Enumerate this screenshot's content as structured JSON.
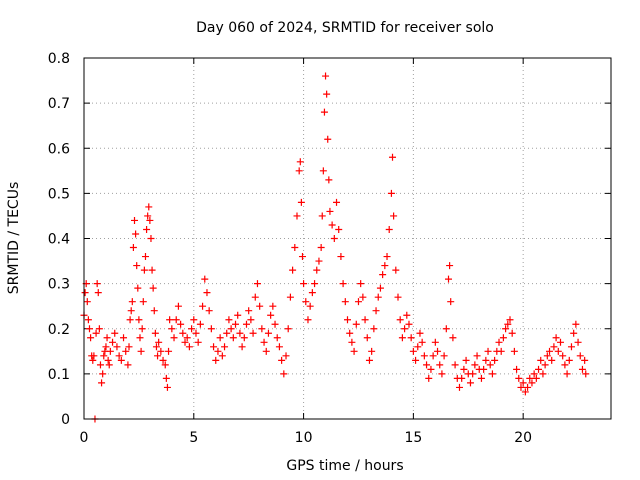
{
  "chart_data": {
    "type": "scatter",
    "title": "Day 060 of 2024, SRMTID for receiver solo",
    "xlabel": "GPS time / hours",
    "ylabel": "SRMTID / TECUs",
    "xlim": [
      0,
      24
    ],
    "ylim": [
      0,
      0.8
    ],
    "xticks": [
      "0",
      "5",
      "10",
      "15",
      "20"
    ],
    "yticks": [
      "0",
      "0.1",
      "0.2",
      "0.3",
      "0.4",
      "0.5",
      "0.6",
      "0.7",
      "0.8"
    ],
    "grid": true,
    "marker": "+",
    "color": "#ff0000",
    "series": [
      {
        "name": "SRMTID",
        "points": [
          [
            0.0,
            0.23
          ],
          [
            0.05,
            0.28
          ],
          [
            0.1,
            0.3
          ],
          [
            0.15,
            0.26
          ],
          [
            0.2,
            0.22
          ],
          [
            0.25,
            0.2
          ],
          [
            0.3,
            0.18
          ],
          [
            0.35,
            0.14
          ],
          [
            0.4,
            0.13
          ],
          [
            0.45,
            0.14
          ],
          [
            0.5,
            0.0
          ],
          [
            0.55,
            0.19
          ],
          [
            0.6,
            0.3
          ],
          [
            0.65,
            0.28
          ],
          [
            0.7,
            0.2
          ],
          [
            0.75,
            0.12
          ],
          [
            0.8,
            0.08
          ],
          [
            0.85,
            0.1
          ],
          [
            0.9,
            0.14
          ],
          [
            0.95,
            0.15
          ],
          [
            1.0,
            0.16
          ],
          [
            1.05,
            0.18
          ],
          [
            1.1,
            0.13
          ],
          [
            1.15,
            0.12
          ],
          [
            1.2,
            0.15
          ],
          [
            1.3,
            0.17
          ],
          [
            1.4,
            0.19
          ],
          [
            1.5,
            0.16
          ],
          [
            1.6,
            0.14
          ],
          [
            1.7,
            0.13
          ],
          [
            1.8,
            0.18
          ],
          [
            1.9,
            0.15
          ],
          [
            2.0,
            0.12
          ],
          [
            2.05,
            0.16
          ],
          [
            2.1,
            0.22
          ],
          [
            2.15,
            0.24
          ],
          [
            2.2,
            0.26
          ],
          [
            2.25,
            0.38
          ],
          [
            2.3,
            0.44
          ],
          [
            2.35,
            0.41
          ],
          [
            2.4,
            0.34
          ],
          [
            2.45,
            0.29
          ],
          [
            2.5,
            0.22
          ],
          [
            2.55,
            0.18
          ],
          [
            2.6,
            0.15
          ],
          [
            2.65,
            0.2
          ],
          [
            2.7,
            0.26
          ],
          [
            2.75,
            0.33
          ],
          [
            2.8,
            0.36
          ],
          [
            2.85,
            0.42
          ],
          [
            2.9,
            0.45
          ],
          [
            2.95,
            0.47
          ],
          [
            3.0,
            0.44
          ],
          [
            3.05,
            0.4
          ],
          [
            3.1,
            0.33
          ],
          [
            3.15,
            0.29
          ],
          [
            3.2,
            0.24
          ],
          [
            3.25,
            0.19
          ],
          [
            3.3,
            0.16
          ],
          [
            3.35,
            0.14
          ],
          [
            3.4,
            0.17
          ],
          [
            3.5,
            0.15
          ],
          [
            3.6,
            0.13
          ],
          [
            3.7,
            0.12
          ],
          [
            3.75,
            0.09
          ],
          [
            3.8,
            0.07
          ],
          [
            3.85,
            0.15
          ],
          [
            3.9,
            0.22
          ],
          [
            4.0,
            0.2
          ],
          [
            4.1,
            0.18
          ],
          [
            4.2,
            0.22
          ],
          [
            4.3,
            0.25
          ],
          [
            4.4,
            0.21
          ],
          [
            4.5,
            0.19
          ],
          [
            4.6,
            0.17
          ],
          [
            4.7,
            0.18
          ],
          [
            4.8,
            0.16
          ],
          [
            4.9,
            0.2
          ],
          [
            5.0,
            0.22
          ],
          [
            5.1,
            0.19
          ],
          [
            5.2,
            0.17
          ],
          [
            5.3,
            0.21
          ],
          [
            5.4,
            0.25
          ],
          [
            5.5,
            0.31
          ],
          [
            5.6,
            0.28
          ],
          [
            5.7,
            0.24
          ],
          [
            5.8,
            0.2
          ],
          [
            5.9,
            0.16
          ],
          [
            6.0,
            0.13
          ],
          [
            6.1,
            0.15
          ],
          [
            6.2,
            0.18
          ],
          [
            6.3,
            0.14
          ],
          [
            6.4,
            0.16
          ],
          [
            6.5,
            0.19
          ],
          [
            6.6,
            0.22
          ],
          [
            6.7,
            0.2
          ],
          [
            6.8,
            0.18
          ],
          [
            6.9,
            0.21
          ],
          [
            7.0,
            0.23
          ],
          [
            7.1,
            0.19
          ],
          [
            7.2,
            0.16
          ],
          [
            7.3,
            0.18
          ],
          [
            7.4,
            0.21
          ],
          [
            7.5,
            0.24
          ],
          [
            7.6,
            0.22
          ],
          [
            7.7,
            0.19
          ],
          [
            7.8,
            0.27
          ],
          [
            7.9,
            0.3
          ],
          [
            8.0,
            0.25
          ],
          [
            8.1,
            0.2
          ],
          [
            8.2,
            0.17
          ],
          [
            8.3,
            0.15
          ],
          [
            8.4,
            0.19
          ],
          [
            8.5,
            0.23
          ],
          [
            8.6,
            0.25
          ],
          [
            8.7,
            0.21
          ],
          [
            8.8,
            0.18
          ],
          [
            8.9,
            0.16
          ],
          [
            9.0,
            0.13
          ],
          [
            9.1,
            0.1
          ],
          [
            9.2,
            0.14
          ],
          [
            9.3,
            0.2
          ],
          [
            9.4,
            0.27
          ],
          [
            9.5,
            0.33
          ],
          [
            9.6,
            0.38
          ],
          [
            9.7,
            0.45
          ],
          [
            9.8,
            0.55
          ],
          [
            9.85,
            0.57
          ],
          [
            9.9,
            0.48
          ],
          [
            9.95,
            0.36
          ],
          [
            10.0,
            0.3
          ],
          [
            10.1,
            0.26
          ],
          [
            10.2,
            0.22
          ],
          [
            10.3,
            0.25
          ],
          [
            10.4,
            0.28
          ],
          [
            10.5,
            0.3
          ],
          [
            10.6,
            0.33
          ],
          [
            10.7,
            0.35
          ],
          [
            10.8,
            0.38
          ],
          [
            10.85,
            0.45
          ],
          [
            10.9,
            0.55
          ],
          [
            10.95,
            0.68
          ],
          [
            11.0,
            0.76
          ],
          [
            11.05,
            0.72
          ],
          [
            11.1,
            0.62
          ],
          [
            11.15,
            0.53
          ],
          [
            11.2,
            0.46
          ],
          [
            11.3,
            0.43
          ],
          [
            11.4,
            0.4
          ],
          [
            11.5,
            0.48
          ],
          [
            11.6,
            0.42
          ],
          [
            11.7,
            0.36
          ],
          [
            11.8,
            0.3
          ],
          [
            11.9,
            0.26
          ],
          [
            12.0,
            0.22
          ],
          [
            12.1,
            0.19
          ],
          [
            12.2,
            0.17
          ],
          [
            12.3,
            0.15
          ],
          [
            12.4,
            0.21
          ],
          [
            12.5,
            0.26
          ],
          [
            12.6,
            0.3
          ],
          [
            12.7,
            0.27
          ],
          [
            12.8,
            0.22
          ],
          [
            12.9,
            0.18
          ],
          [
            13.0,
            0.13
          ],
          [
            13.1,
            0.15
          ],
          [
            13.2,
            0.2
          ],
          [
            13.3,
            0.24
          ],
          [
            13.4,
            0.27
          ],
          [
            13.5,
            0.29
          ],
          [
            13.6,
            0.32
          ],
          [
            13.7,
            0.34
          ],
          [
            13.8,
            0.36
          ],
          [
            13.9,
            0.42
          ],
          [
            14.0,
            0.5
          ],
          [
            14.05,
            0.58
          ],
          [
            14.1,
            0.45
          ],
          [
            14.2,
            0.33
          ],
          [
            14.3,
            0.27
          ],
          [
            14.4,
            0.22
          ],
          [
            14.5,
            0.18
          ],
          [
            14.6,
            0.2
          ],
          [
            14.7,
            0.23
          ],
          [
            14.8,
            0.21
          ],
          [
            14.9,
            0.18
          ],
          [
            15.0,
            0.15
          ],
          [
            15.1,
            0.13
          ],
          [
            15.2,
            0.16
          ],
          [
            15.3,
            0.19
          ],
          [
            15.4,
            0.17
          ],
          [
            15.5,
            0.14
          ],
          [
            15.6,
            0.12
          ],
          [
            15.7,
            0.09
          ],
          [
            15.8,
            0.11
          ],
          [
            15.9,
            0.14
          ],
          [
            16.0,
            0.17
          ],
          [
            16.1,
            0.15
          ],
          [
            16.2,
            0.12
          ],
          [
            16.3,
            0.1
          ],
          [
            16.4,
            0.14
          ],
          [
            16.5,
            0.2
          ],
          [
            16.6,
            0.31
          ],
          [
            16.65,
            0.34
          ],
          [
            16.7,
            0.26
          ],
          [
            16.8,
            0.18
          ],
          [
            16.9,
            0.12
          ],
          [
            17.0,
            0.09
          ],
          [
            17.1,
            0.07
          ],
          [
            17.2,
            0.09
          ],
          [
            17.3,
            0.11
          ],
          [
            17.4,
            0.13
          ],
          [
            17.5,
            0.1
          ],
          [
            17.6,
            0.08
          ],
          [
            17.7,
            0.1
          ],
          [
            17.8,
            0.12
          ],
          [
            17.9,
            0.14
          ],
          [
            18.0,
            0.11
          ],
          [
            18.1,
            0.09
          ],
          [
            18.2,
            0.11
          ],
          [
            18.3,
            0.13
          ],
          [
            18.4,
            0.15
          ],
          [
            18.5,
            0.12
          ],
          [
            18.6,
            0.1
          ],
          [
            18.7,
            0.13
          ],
          [
            18.8,
            0.15
          ],
          [
            18.9,
            0.17
          ],
          [
            19.0,
            0.15
          ],
          [
            19.1,
            0.18
          ],
          [
            19.2,
            0.2
          ],
          [
            19.3,
            0.21
          ],
          [
            19.4,
            0.22
          ],
          [
            19.5,
            0.19
          ],
          [
            19.6,
            0.15
          ],
          [
            19.7,
            0.11
          ],
          [
            19.8,
            0.09
          ],
          [
            19.9,
            0.07
          ],
          [
            20.0,
            0.08
          ],
          [
            20.1,
            0.06
          ],
          [
            20.2,
            0.07
          ],
          [
            20.3,
            0.09
          ],
          [
            20.4,
            0.08
          ],
          [
            20.5,
            0.1
          ],
          [
            20.6,
            0.09
          ],
          [
            20.7,
            0.11
          ],
          [
            20.8,
            0.13
          ],
          [
            20.9,
            0.1
          ],
          [
            21.0,
            0.12
          ],
          [
            21.1,
            0.14
          ],
          [
            21.2,
            0.15
          ],
          [
            21.3,
            0.13
          ],
          [
            21.4,
            0.16
          ],
          [
            21.5,
            0.18
          ],
          [
            21.6,
            0.15
          ],
          [
            21.7,
            0.17
          ],
          [
            21.8,
            0.14
          ],
          [
            21.9,
            0.12
          ],
          [
            22.0,
            0.1
          ],
          [
            22.1,
            0.13
          ],
          [
            22.2,
            0.16
          ],
          [
            22.3,
            0.19
          ],
          [
            22.4,
            0.21
          ],
          [
            22.5,
            0.17
          ],
          [
            22.6,
            0.14
          ],
          [
            22.7,
            0.11
          ],
          [
            22.8,
            0.13
          ],
          [
            22.85,
            0.1
          ]
        ]
      }
    ]
  }
}
